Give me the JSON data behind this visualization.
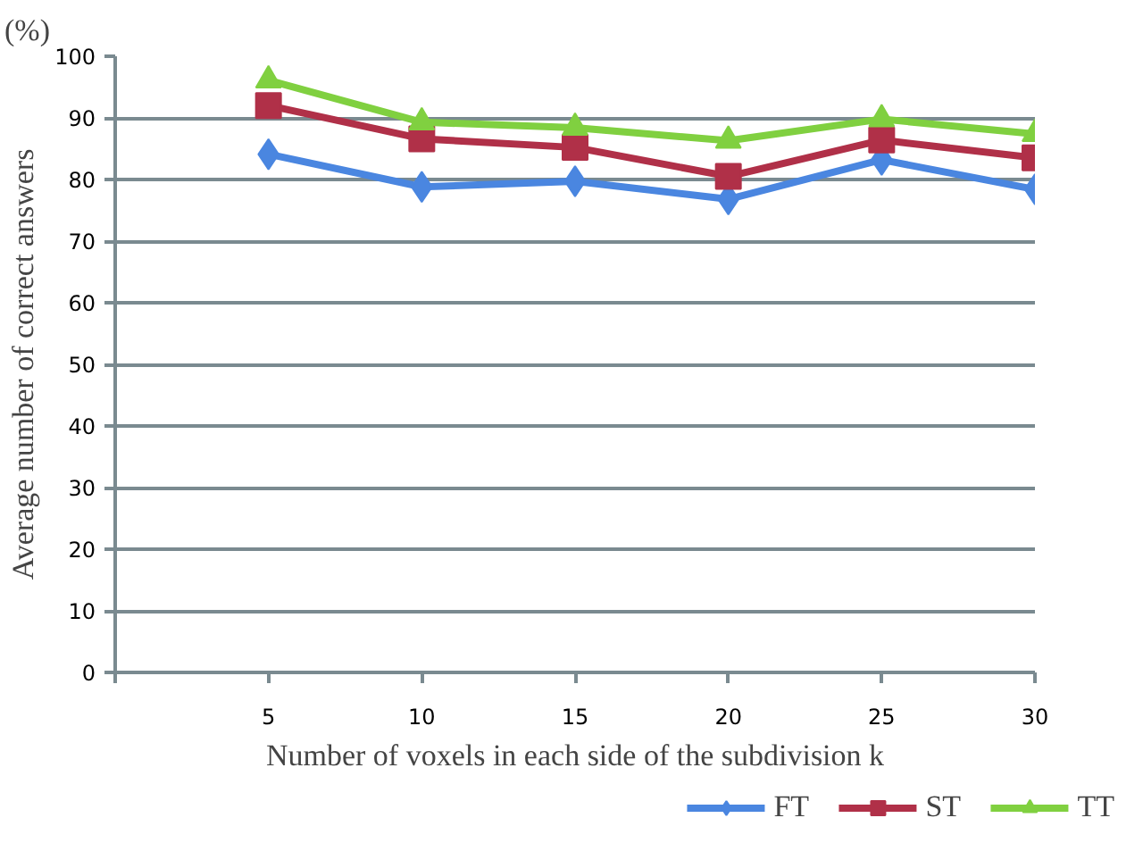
{
  "chart_data": {
    "type": "line",
    "xlabel": "Number of voxels in each side of the subdivision k",
    "ylabel": "Average number of correct answers",
    "annotations": [
      "(%)"
    ],
    "x": [
      5,
      10,
      15,
      20,
      25,
      30
    ],
    "xlim": [
      0,
      30
    ],
    "xticks": [
      {
        "value": 0,
        "label": null
      },
      5,
      10,
      15,
      20,
      25,
      30
    ],
    "ylim": [
      0,
      100
    ],
    "yticks": [
      0,
      10,
      20,
      30,
      40,
      50,
      60,
      70,
      80,
      90,
      100
    ],
    "grid": "y",
    "legend": "bottom right",
    "line_style": "solid",
    "series": [
      {
        "name": "FT",
        "color": "#4a86e0",
        "marker": "diamond",
        "values": [
          84.1,
          78.8,
          79.7,
          76.8,
          83.2,
          78.4
        ]
      },
      {
        "name": "ST",
        "color": "#b03048",
        "marker": "square",
        "values": [
          92.0,
          86.6,
          85.2,
          80.5,
          86.4,
          83.5
        ]
      },
      {
        "name": "TT",
        "color": "#80d040",
        "marker": "triangle",
        "values": [
          96.1,
          89.3,
          88.4,
          86.3,
          89.8,
          87.4
        ]
      }
    ]
  }
}
